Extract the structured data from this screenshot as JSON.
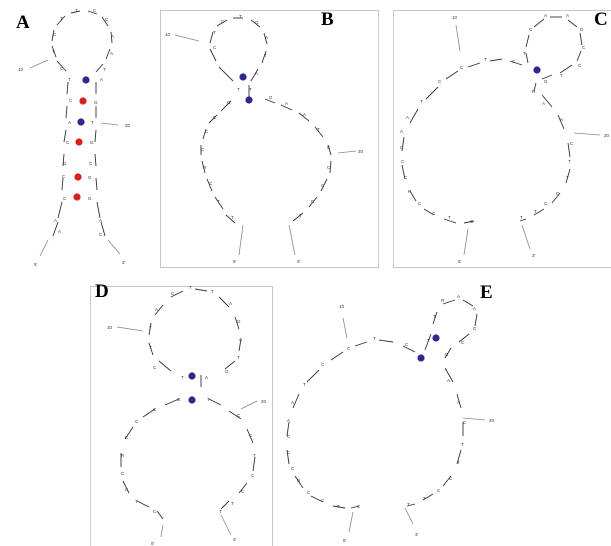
{
  "panels": [
    {
      "label": "A"
    },
    {
      "label": "B"
    },
    {
      "label": "C"
    },
    {
      "label": "D"
    },
    {
      "label": "E"
    }
  ],
  "numbers": {
    "n10": "10",
    "n20": "20",
    "n5": "5'",
    "n3": "3'"
  },
  "colors": {
    "blue": "#2e2a8c",
    "red": "#d81e1e",
    "border": "#c8c8c8",
    "stroke": "#333333",
    "guide": "#888888"
  },
  "chart_data": [
    {
      "panel": "A",
      "sequence": "ACGAGTTCCCAAGTTCATACAGTGA",
      "pairs": [
        "blue",
        "red",
        "blue",
        "red",
        "red",
        "red"
      ]
    },
    {
      "panel": "B",
      "sequence": "CTGACTCATGTAGGATACCCTGTTGCCG",
      "pairs": [
        "blue",
        "blue"
      ]
    },
    {
      "panel": "C",
      "sequence": "CTCAATCCGTTCCCTACTTGAGATGG",
      "pairs": [
        "blue"
      ]
    },
    {
      "panel": "D",
      "sequence": "TAGTACCTGTCCAGTTGCGCTCGCGATAGCAG",
      "pairs": [
        "blue",
        "blue"
      ]
    },
    {
      "panel": "E",
      "sequence": "CTCAATCCGTTCCCTACTTGAGATGG",
      "pairs": [
        "blue",
        "blue"
      ]
    }
  ]
}
